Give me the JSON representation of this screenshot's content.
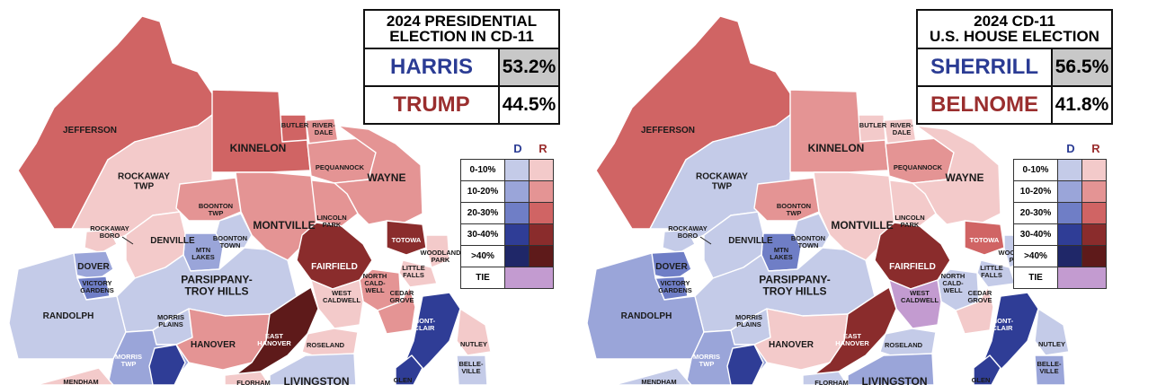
{
  "colors": {
    "d": [
      "#c4cbe8",
      "#9aa5d9",
      "#6f7ec6",
      "#2f3d96"
    ],
    "r": [
      "#f3caca",
      "#e49494",
      "#d06464",
      "#8a2c2c",
      "#5e1a1a"
    ],
    "tie": "#c39bd0",
    "harris_text": "#2b3c94",
    "trump_text": "#9a2e2e"
  },
  "panels": [
    {
      "id": "presidential",
      "title_line1": "2024 PRESIDENTIAL",
      "title_line2": "ELECTION IN CD-11",
      "candidates": [
        {
          "name": "HARRIS",
          "pct": "53.2%",
          "party": "D",
          "winner": true
        },
        {
          "name": "TRUMP",
          "pct": "44.5%",
          "party": "R",
          "winner": false
        }
      ],
      "fills": {
        "jefferson": "r2",
        "rockaway_twp": "r0",
        "kinnelon": "r2",
        "butler": "r2",
        "riverdale": "r1",
        "pequannock": "r1",
        "wayne": "r1",
        "lincoln_park": "r1",
        "boonton_twp": "r1",
        "montville": "r1",
        "boonton_town": "d0",
        "mtn_lakes": "d1",
        "denville": "r0",
        "rockaway_boro": "r0",
        "dover": "d1",
        "victory_gardens": "d2",
        "randolph": "d0",
        "parsippany": "d0",
        "fairfield": "r3",
        "totowa": "r3",
        "woodland_park": "r0",
        "little_falls": "r0",
        "north_caldwell": "r1",
        "west_caldwell": "r0",
        "cedar_grove": "r1",
        "morris_plains": "d0",
        "hanover": "r1",
        "east_hanover": "r4",
        "roseland": "r0",
        "morris_twp": "d1",
        "morristown": "d3",
        "montclair": "d3",
        "nutley": "r0",
        "belleville": "d0",
        "glen_ridge": "d3",
        "livingston": "d0",
        "florham": "r0",
        "mendham": "r0"
      }
    },
    {
      "id": "house",
      "title_line1": "2024 CD-11",
      "title_line2": "U.S. HOUSE ELECTION",
      "candidates": [
        {
          "name": "SHERRILL",
          "pct": "56.5%",
          "party": "D",
          "winner": true
        },
        {
          "name": "BELNOME",
          "pct": "41.8%",
          "party": "R",
          "winner": false
        }
      ],
      "fills": {
        "jefferson": "r2",
        "rockaway_twp": "d0",
        "kinnelon": "r1",
        "butler": "r0",
        "riverdale": "r0",
        "pequannock": "r1",
        "wayne": "r0",
        "lincoln_park": "r0",
        "boonton_twp": "r1",
        "montville": "r0",
        "boonton_town": "d0",
        "mtn_lakes": "d2",
        "denville": "d0",
        "rockaway_boro": "d0",
        "dover": "d2",
        "victory_gardens": "d2",
        "randolph": "d1",
        "parsippany": "d0",
        "fairfield": "r3",
        "totowa": "r2",
        "woodland_park": "d0",
        "little_falls": "d0",
        "north_caldwell": "d0",
        "west_caldwell": "tie",
        "cedar_grove": "r0",
        "morris_plains": "d0",
        "hanover": "r0",
        "east_hanover": "r3",
        "roseland": "d0",
        "morris_twp": "d1",
        "morristown": "d3",
        "montclair": "d3",
        "nutley": "d0",
        "belleville": "d1",
        "glen_ridge": "d3",
        "livingston": "d1",
        "florham": "d0",
        "mendham": "d0"
      }
    }
  ],
  "labels": {
    "jefferson": "JEFFERSON",
    "rockaway_twp_1": "ROCKAWAY",
    "rockaway_twp_2": "TWP",
    "kinnelon": "KINNELON",
    "butler": "BUTLER",
    "riverdale_1": "RIVER-",
    "riverdale_2": "DALE",
    "pequannock": "PEQUANNOCK",
    "wayne": "WAYNE",
    "lincoln_park_1": "LINCOLN",
    "lincoln_park_2": "PARK",
    "boonton_twp_1": "BOONTON",
    "boonton_twp_2": "TWP",
    "montville": "MONTVILLE",
    "boonton_town_1": "BOONTON",
    "boonton_town_2": "TOWN",
    "mtn_lakes_1": "MTN",
    "mtn_lakes_2": "LAKES",
    "denville": "DENVILLE",
    "rockaway_boro_1": "ROCKAWAY",
    "rockaway_boro_2": "BORO",
    "dover": "DOVER",
    "victory_gardens_1": "VICTORY",
    "victory_gardens_2": "GARDENS",
    "randolph": "RANDOLPH",
    "parsippany_1": "PARSIPPANY-",
    "parsippany_2": "TROY HILLS",
    "fairfield": "FAIRFIELD",
    "totowa": "TOTOWA",
    "woodland_park_1": "WOODLAND",
    "woodland_park_2": "PARK",
    "little_falls_1": "LITTLE",
    "little_falls_2": "FALLS",
    "north_caldwell_1": "NORTH",
    "north_caldwell_2": "CALD-",
    "north_caldwell_3": "WELL",
    "west_caldwell_1": "WEST",
    "west_caldwell_2": "CALDWELL",
    "cedar_grove_1": "CEDAR",
    "cedar_grove_2": "GROVE",
    "morris_plains_1": "MORRIS",
    "morris_plains_2": "PLAINS",
    "hanover": "HANOVER",
    "east_hanover_1": "EAST",
    "east_hanover_2": "HANOVER",
    "roseland": "ROSELAND",
    "morris_twp_1": "MORRIS",
    "morris_twp_2": "TWP",
    "montclair_1": "MONT-",
    "montclair_2": "CLAIR",
    "nutley": "NUTLEY",
    "belleville_1": "BELLE-",
    "belleville_2": "VILLE",
    "glen": "GLEN",
    "mendham": "MENDHAM",
    "florham": "FLORHAM",
    "livingston": "LIVINGSTON"
  },
  "legend": {
    "d_header": "D",
    "r_header": "R",
    "rows": [
      "0-10%",
      "10-20%",
      "20-30%",
      "30-40%",
      ">40%"
    ],
    "tie": "TIE"
  }
}
